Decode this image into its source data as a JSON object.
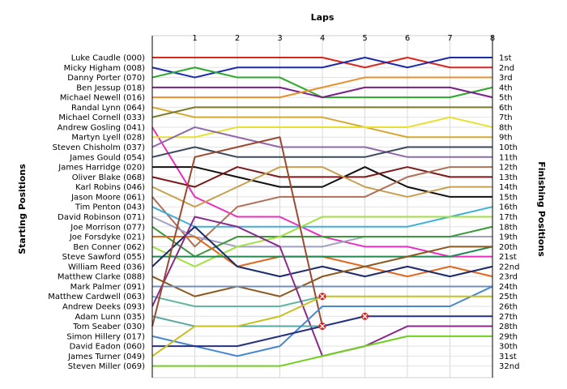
{
  "chart_data": {
    "type": "line",
    "title": "",
    "xlabel": "Laps",
    "ylabel_left": "Starting Positions",
    "ylabel_right": "Finishing Positions",
    "x": [
      0,
      1,
      2,
      3,
      4,
      5,
      6,
      7,
      8
    ],
    "x_tick_labels": [
      "1",
      "2",
      "3",
      "4",
      "5",
      "6",
      "7",
      "8"
    ],
    "grid": true,
    "y_inverted": true,
    "drivers": [
      "Luke Caudle (000)",
      "Micky Higham (008)",
      "Danny Porter (070)",
      "Ben Jessup (018)",
      "Michael Newell (016)",
      "Randal Lynn (064)",
      "Michael Cornell (033)",
      "Andrew Gosling (041)",
      "Martyn Lyell (028)",
      "Steven Chisholm (037)",
      "James Gould (054)",
      "James Harridge (020)",
      "Oliver Blake (068)",
      "Karl Robins (046)",
      "Jason Moore (061)",
      "Tim Penton (043)",
      "David Robinson (071)",
      "Joe Morrison (077)",
      "Joe Forsdyke (021)",
      "Ben Conner (062)",
      "Steve Sawford (055)",
      "William Reed (036)",
      "Matthew Clarke (088)",
      "Mark Palmer (091)",
      "Matthew Cardwell (063)",
      "Andrew Deeks (093)",
      "Adam Lunn (035)",
      "Tom Seaber (030)",
      "Simon Hillery (017)",
      "David Eadon (060)",
      "James Turner (049)",
      "Steven Miller (069)"
    ],
    "finishing_labels": [
      "1st",
      "2nd",
      "3rd",
      "4th",
      "5th",
      "6th",
      "7th",
      "8th",
      "9th",
      "10th",
      "11th",
      "12th",
      "13th",
      "14th",
      "15th",
      "16th",
      "17th",
      "18th",
      "19th",
      "20th",
      "21st",
      "22nd",
      "23rd",
      "24th",
      "25th",
      "26th",
      "27th",
      "28th",
      "29th",
      "30th",
      "31st",
      "32nd"
    ],
    "series": [
      {
        "color": "#d8281e",
        "positions": [
          1,
          1,
          1,
          1,
          1,
          2,
          1,
          2,
          2
        ]
      },
      {
        "color": "#1c2ca8",
        "positions": [
          2,
          3,
          2,
          2,
          2,
          1,
          2,
          1,
          1
        ]
      },
      {
        "color": "#2ea82c",
        "positions": [
          3,
          2,
          3,
          3,
          5,
          5,
          5,
          5,
          4
        ]
      },
      {
        "color": "#7b1f8a",
        "positions": [
          4,
          4,
          4,
          4,
          5,
          4,
          4,
          4,
          5
        ]
      },
      {
        "color": "#e8902e",
        "positions": [
          5,
          5,
          5,
          5,
          4,
          3,
          3,
          3,
          3
        ]
      },
      {
        "color": "#d6a830",
        "positions": [
          6,
          7,
          7,
          7,
          7,
          8,
          9,
          9,
          9
        ]
      },
      {
        "color": "#7a7a28",
        "positions": [
          7,
          6,
          6,
          6,
          6,
          6,
          6,
          6,
          6
        ]
      },
      {
        "color": "#e830c0",
        "positions": [
          8,
          15,
          17,
          17,
          19,
          20,
          20,
          21,
          21
        ]
      },
      {
        "color": "#e8e030",
        "positions": [
          9,
          9,
          8,
          8,
          8,
          8,
          8,
          7,
          8
        ]
      },
      {
        "color": "#8f6aa8",
        "positions": [
          10,
          8,
          9,
          10,
          10,
          10,
          11,
          11,
          11
        ]
      },
      {
        "color": "#3c4a5c",
        "positions": [
          11,
          10,
          11,
          11,
          11,
          11,
          10,
          10,
          10
        ]
      },
      {
        "color": "#111111",
        "positions": [
          12,
          12,
          13,
          14,
          14,
          12,
          14,
          15,
          15
        ]
      },
      {
        "color": "#7a1a1a",
        "positions": [
          13,
          14,
          12,
          13,
          13,
          13,
          12,
          13,
          13
        ]
      },
      {
        "color": "#c8a050",
        "positions": [
          14,
          16,
          14,
          12,
          12,
          14,
          15,
          14,
          14
        ]
      },
      {
        "color": "#b07058",
        "positions": [
          15,
          20,
          16,
          15,
          15,
          15,
          13,
          12,
          12
        ]
      },
      {
        "color": "#40b0d8",
        "positions": [
          16,
          18,
          18,
          18,
          18,
          18,
          18,
          17,
          16
        ]
      },
      {
        "color": "#a0a0c0",
        "positions": [
          17,
          19,
          20,
          20,
          20,
          19,
          19,
          19,
          19
        ]
      },
      {
        "color": "#3a9a3a",
        "positions": [
          18,
          21,
          19,
          19,
          19,
          19,
          19,
          19,
          18
        ]
      },
      {
        "color": "#e06820",
        "positions": [
          19,
          19,
          22,
          21,
          21,
          22,
          23,
          22,
          23
        ]
      },
      {
        "color": "#a0e040",
        "positions": [
          20,
          22,
          20,
          19,
          17,
          17,
          17,
          17,
          17
        ]
      },
      {
        "color": "#208850",
        "positions": [
          21,
          21,
          21,
          21,
          21,
          21,
          21,
          21,
          20
        ]
      },
      {
        "color": "#1e2a6a",
        "positions": [
          22,
          18,
          22,
          23,
          22,
          23,
          22,
          23,
          22
        ]
      },
      {
        "color": "#8a5a20",
        "positions": [
          23,
          25,
          24,
          25,
          23,
          22,
          21,
          20,
          20
        ]
      },
      {
        "color": "#7090c0",
        "positions": [
          24,
          24,
          24,
          24,
          24,
          24,
          24,
          24,
          24
        ]
      },
      {
        "color": "#60b8a0",
        "positions": [
          25,
          26,
          26,
          26,
          25
        ],
        "retired": true
      },
      {
        "color": "#8a2a8a",
        "positions": [
          26,
          17,
          18,
          20,
          31,
          30,
          28,
          28,
          28
        ]
      },
      {
        "color": "#58a8a0",
        "positions": [
          27,
          28,
          28,
          28,
          28,
          27
        ],
        "retired": true
      },
      {
        "color": "#9a4a30",
        "positions": [
          28,
          11,
          10,
          9,
          28
        ],
        "retired": true
      },
      {
        "color": "#4888d0",
        "positions": [
          29,
          30,
          31,
          30,
          26,
          26,
          26,
          26,
          24
        ]
      },
      {
        "color": "#283080",
        "positions": [
          30,
          30,
          30,
          29,
          28,
          27,
          27,
          27,
          27
        ]
      },
      {
        "color": "#c8c020",
        "positions": [
          31,
          28,
          28,
          27,
          25,
          25,
          25,
          25,
          25
        ]
      },
      {
        "color": "#70d020",
        "positions": [
          32,
          32,
          32,
          32,
          31,
          30,
          29,
          29,
          29
        ]
      }
    ],
    "retirement_marker_color": "#d82020"
  }
}
